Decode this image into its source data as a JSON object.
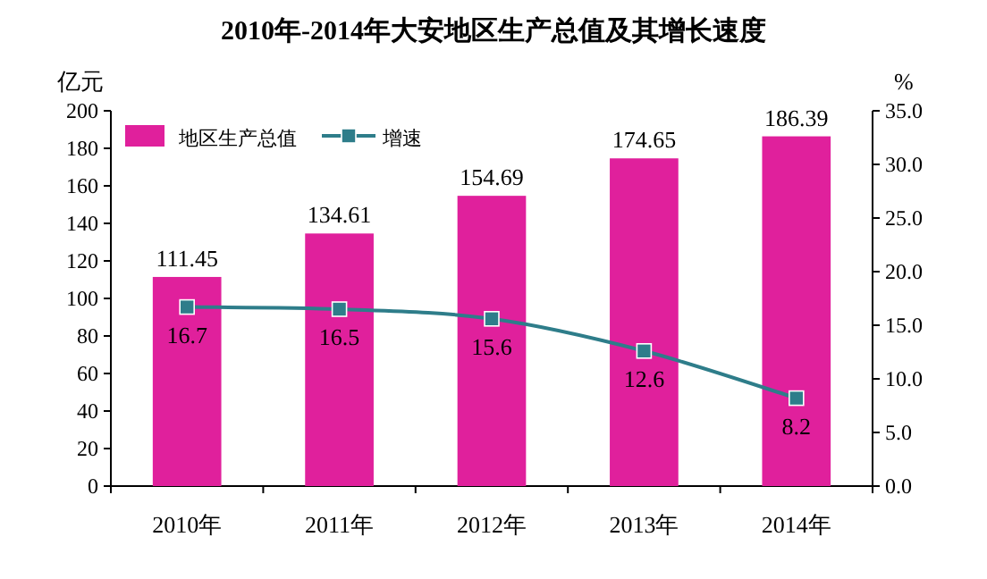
{
  "chart_data": {
    "type": "bar",
    "title": "2010年-2014年大安地区生产总值及其增长速度",
    "ylabel": "亿元",
    "y2label": "%",
    "categories": [
      "2010年",
      "2011年",
      "2012年",
      "2013年",
      "2014年"
    ],
    "series": [
      {
        "name": "地区生产总值",
        "color": "#e0209c",
        "values": [
          111.45,
          134.61,
          154.69,
          174.65,
          186.39
        ]
      },
      {
        "name": "增速",
        "type": "line",
        "axis": "y2",
        "color": "#2e7d8a",
        "marker": "square",
        "values": [
          16.7,
          16.5,
          15.6,
          12.6,
          8.2
        ]
      }
    ],
    "ylim": [
      0,
      200
    ],
    "yticks": [
      0,
      20,
      40,
      60,
      80,
      100,
      120,
      140,
      160,
      180,
      200
    ],
    "y2lim": [
      0,
      35
    ],
    "y2ticks": [
      {
        "value": 0,
        "label": "0.0"
      },
      {
        "value": 5,
        "label": "5.0"
      },
      {
        "value": 10,
        "label": "10.0"
      },
      {
        "value": 15,
        "label": "15.0"
      },
      {
        "value": 20,
        "label": "20.0"
      },
      {
        "value": 25,
        "label": "25.0"
      },
      {
        "value": 30,
        "label": "30.0"
      },
      {
        "value": 35,
        "label": "35.0"
      }
    ],
    "data_labels": true,
    "legend": "top left",
    "grid": false
  }
}
